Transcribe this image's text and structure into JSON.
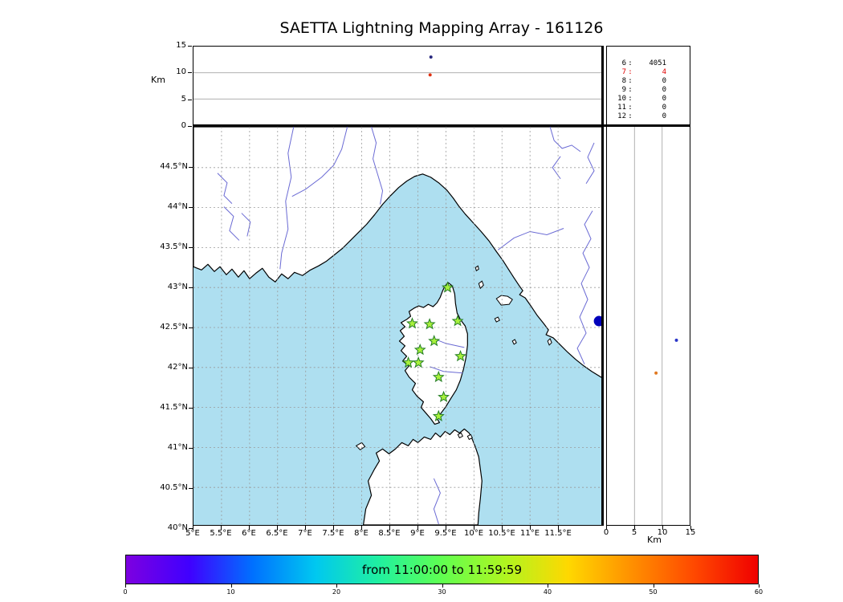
{
  "title": "SAETTA Lightning Mapping Array - 161126",
  "labels": {
    "alt_axis_left": "Km",
    "alt_axis_bottom": "Km"
  },
  "colors": {
    "sea": "#aedff0",
    "land": "#ffffff",
    "coastline": "#000000",
    "river": "#6a6ad4",
    "grid": "#999999",
    "panel_grid": "#b0b0b0",
    "station_fill": "#a8f03c",
    "station_edge": "#237d23",
    "event_dot": "#0000bb",
    "highlight_red": "#e00000",
    "colorbar_gradient": [
      "#7d00e0",
      "#4000ff",
      "#0070ff",
      "#00c8f0",
      "#20f0a0",
      "#60ff50",
      "#b0f520",
      "#ffd800",
      "#ff9000",
      "#ff4800",
      "#f00000"
    ]
  },
  "colorbar": {
    "label": "from 11:00:00 to 11:59:59",
    "ticks": [
      0,
      10,
      20,
      30,
      40,
      50,
      60
    ]
  },
  "chart_data": [
    {
      "type": "scatter",
      "name": "altitude_vs_time",
      "ylabel": "Km",
      "ylim": [
        0,
        15
      ],
      "yticks": [
        15,
        10,
        5,
        0
      ],
      "time_start": "11:00:00",
      "time_end": "11:59:59",
      "grid": true,
      "points": [
        {
          "time_frac": 0.581,
          "alt_km": 13.0,
          "color": "#26267d"
        },
        {
          "time_frac": 0.579,
          "alt_km": 9.6,
          "color": "#e03010"
        }
      ]
    },
    {
      "type": "scatter",
      "name": "station_map",
      "region": "Corsica and NW Mediterranean",
      "xlim_lon": [
        5.0,
        12.3
      ],
      "ylim_lat": [
        40.0,
        45.0
      ],
      "grid": true,
      "xticks": [
        "5°E",
        "5.5°E",
        "6°E",
        "6.5°E",
        "7°E",
        "7.5°E",
        "8°E",
        "8.5°E",
        "9°E",
        "9.5°E",
        "10°E",
        "10.5°E",
        "11°E",
        "11.5°E"
      ],
      "yticks": [
        "44.5°N",
        "44°N",
        "43.5°N",
        "43°N",
        "42.5°N",
        "42°N",
        "41.5°N",
        "41°N",
        "40.5°N",
        "40°N"
      ],
      "stations": [
        {
          "lon": 9.53,
          "lat": 43.0
        },
        {
          "lon": 8.9,
          "lat": 42.55
        },
        {
          "lon": 9.21,
          "lat": 42.54
        },
        {
          "lon": 9.71,
          "lat": 42.58
        },
        {
          "lon": 9.29,
          "lat": 42.33
        },
        {
          "lon": 9.04,
          "lat": 42.22
        },
        {
          "lon": 9.76,
          "lat": 42.14
        },
        {
          "lon": 8.83,
          "lat": 42.06
        },
        {
          "lon": 9.01,
          "lat": 42.06
        },
        {
          "lon": 9.37,
          "lat": 41.88
        },
        {
          "lon": 9.46,
          "lat": 41.63
        },
        {
          "lon": 9.37,
          "lat": 41.39
        }
      ],
      "event_marker": {
        "lon": 12.23,
        "lat": 42.58,
        "color": "#0000bb"
      }
    },
    {
      "type": "scatter",
      "name": "altitude_vs_latitude",
      "xlabel": "Km",
      "xlim": [
        0,
        15
      ],
      "xticks": [
        0,
        5,
        10,
        15
      ],
      "grid": true,
      "points": [
        {
          "alt_km": 12.6,
          "lat": 42.34,
          "color": "#2a35c8"
        },
        {
          "alt_km": 8.9,
          "lat": 41.93,
          "color": "#e07820"
        }
      ]
    },
    {
      "type": "colorbar",
      "label": "from 11:00:00 to 11:59:59",
      "ticks": [
        0,
        10,
        20,
        30,
        40,
        50,
        60
      ]
    },
    {
      "type": "table",
      "name": "sources_per_station_count",
      "separator": ":",
      "rows": [
        {
          "station": "6",
          "count": "4051",
          "color": "#000000"
        },
        {
          "station": "7",
          "count": "4",
          "color": "#e00000"
        },
        {
          "station": "8",
          "count": "0",
          "color": "#000000"
        },
        {
          "station": "9",
          "count": "0",
          "color": "#000000"
        },
        {
          "station": "10",
          "count": "0",
          "color": "#000000"
        },
        {
          "station": "11",
          "count": "0",
          "color": "#000000"
        },
        {
          "station": "12",
          "count": "0",
          "color": "#000000"
        }
      ]
    }
  ]
}
